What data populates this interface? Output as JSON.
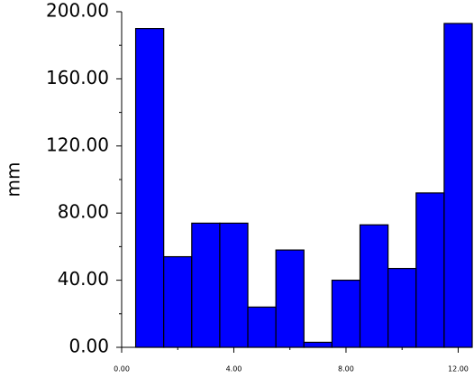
{
  "chart_data": {
    "type": "bar",
    "y_label": "mm",
    "x": [
      1,
      2,
      3,
      4,
      5,
      6,
      7,
      8,
      9,
      10,
      11,
      12
    ],
    "values": [
      190,
      54,
      74,
      74,
      24,
      58,
      3,
      40,
      73,
      47,
      92,
      193
    ],
    "color": "#0000ff",
    "xlim": [
      0,
      12.5
    ],
    "xticks": [
      {
        "value": 0,
        "label": "0.00"
      },
      {
        "value": 4,
        "label": "4.00"
      },
      {
        "value": 8,
        "label": "8.00"
      },
      {
        "value": 12,
        "label": "12.00"
      }
    ],
    "ylim": [
      0,
      200
    ],
    "yticks": [
      {
        "value": 0,
        "label": "0.00"
      },
      {
        "value": 40,
        "label": "40.00"
      },
      {
        "value": 80,
        "label": "80.00"
      },
      {
        "value": 120,
        "label": "120.00"
      },
      {
        "value": 160,
        "label": "160.00"
      },
      {
        "value": 200,
        "label": "200.00"
      }
    ]
  }
}
